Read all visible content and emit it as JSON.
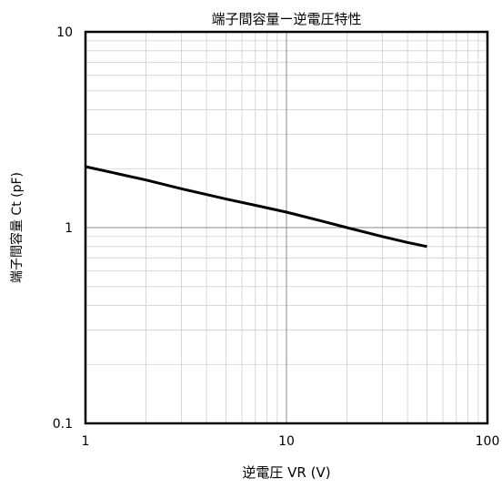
{
  "chart_data": {
    "type": "line",
    "title": "端子間容量ー逆電圧特性",
    "xlabel": "逆電圧 VR (V)",
    "ylabel": "端子間容量 Ct (pF)",
    "xscale": "log",
    "yscale": "log",
    "xlim": [
      1,
      100
    ],
    "ylim": [
      0.1,
      10
    ],
    "x_ticks": [
      "1",
      "10",
      "100"
    ],
    "y_ticks": [
      "0.1",
      "1",
      "10"
    ],
    "grid": true,
    "legend": "none",
    "series": [
      {
        "color": "#000000",
        "x": [
          1,
          2,
          3,
          5,
          7,
          10,
          15,
          20,
          30,
          40,
          50
        ],
        "y": [
          2.05,
          1.75,
          1.58,
          1.4,
          1.3,
          1.2,
          1.08,
          1.0,
          0.9,
          0.84,
          0.8
        ]
      }
    ]
  }
}
